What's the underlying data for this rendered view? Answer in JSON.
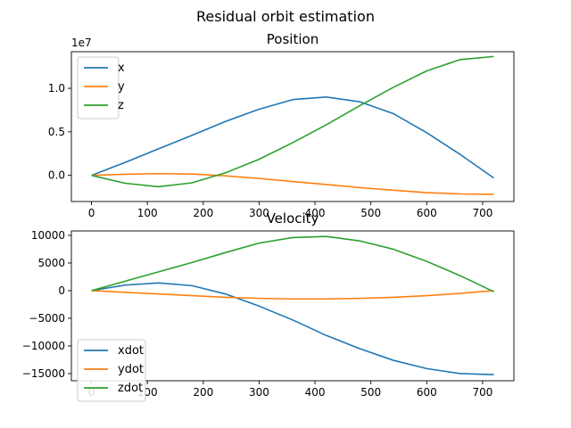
{
  "figure": {
    "suptitle": "Residual orbit estimation"
  },
  "chart_data": [
    {
      "type": "line",
      "title": "Position",
      "xlabel": "",
      "ylabel": "",
      "offset_label": "1e7",
      "xlim": [
        -36,
        756
      ],
      "ylim": [
        -30000000,
        142000000
      ],
      "xticks": [
        0,
        100,
        200,
        300,
        400,
        500,
        600,
        700
      ],
      "yticks": [
        {
          "value": 0,
          "label": "0.0"
        },
        {
          "value": 50000000,
          "label": "0.5"
        },
        {
          "value": 100000000,
          "label": "1.0"
        }
      ],
      "legend": "upper-left",
      "grid": false,
      "x": [
        0,
        60,
        120,
        180,
        240,
        300,
        360,
        420,
        480,
        540,
        600,
        660,
        720
      ],
      "series": [
        {
          "name": "x",
          "color": "#1f77b4",
          "values": [
            0,
            14800000,
            30500000,
            46000000,
            62000000,
            76000000,
            87000000,
            90000000,
            84500000,
            71000000,
            49000000,
            24000000,
            -3000000
          ]
        },
        {
          "name": "y",
          "color": "#ff7f0e",
          "values": [
            0,
            1300000,
            2000000,
            1500000,
            -500000,
            -3500000,
            -7000000,
            -10500000,
            -14000000,
            -17000000,
            -19800000,
            -21300000,
            -21700000
          ]
        },
        {
          "name": "z",
          "color": "#2ca02c",
          "values": [
            0,
            -9000000,
            -13000000,
            -8500000,
            3000000,
            18500000,
            37500000,
            58000000,
            80000000,
            101000000,
            120000000,
            133000000,
            136500000
          ]
        }
      ]
    },
    {
      "type": "line",
      "title": "Velocity",
      "xlabel": "",
      "ylabel": "",
      "xlim": [
        -36,
        756
      ],
      "ylim": [
        -16300000,
        10800000
      ],
      "xticks": [
        0,
        100,
        200,
        300,
        400,
        500,
        600,
        700
      ],
      "yticks": [
        {
          "value": 10000,
          "label": "10000"
        },
        {
          "value": 5000,
          "label": "5000"
        },
        {
          "value": 0,
          "label": "0"
        },
        {
          "value": -5000,
          "label": "−5000"
        },
        {
          "value": -10000,
          "label": "−10000"
        },
        {
          "value": -15000,
          "label": "−15000"
        }
      ],
      "legend": "lower-left",
      "grid": false,
      "x": [
        0,
        60,
        120,
        180,
        240,
        300,
        360,
        420,
        480,
        540,
        600,
        660,
        720
      ],
      "series": [
        {
          "name": "xdot",
          "color": "#1f77b4",
          "values": [
            0,
            1000,
            1400,
            900,
            -600,
            -2800,
            -5300,
            -8100,
            -10500,
            -12600,
            -14100,
            -15000,
            -15200
          ]
        },
        {
          "name": "ydot",
          "color": "#ff7f0e",
          "values": [
            0,
            -300,
            -600,
            -900,
            -1200,
            -1400,
            -1500,
            -1500,
            -1400,
            -1200,
            -900,
            -500,
            0
          ]
        },
        {
          "name": "zdot",
          "color": "#2ca02c",
          "values": [
            0,
            1700,
            3400,
            5100,
            6900,
            8600,
            9600,
            9800,
            9000,
            7500,
            5300,
            2700,
            -200
          ]
        }
      ]
    }
  ]
}
